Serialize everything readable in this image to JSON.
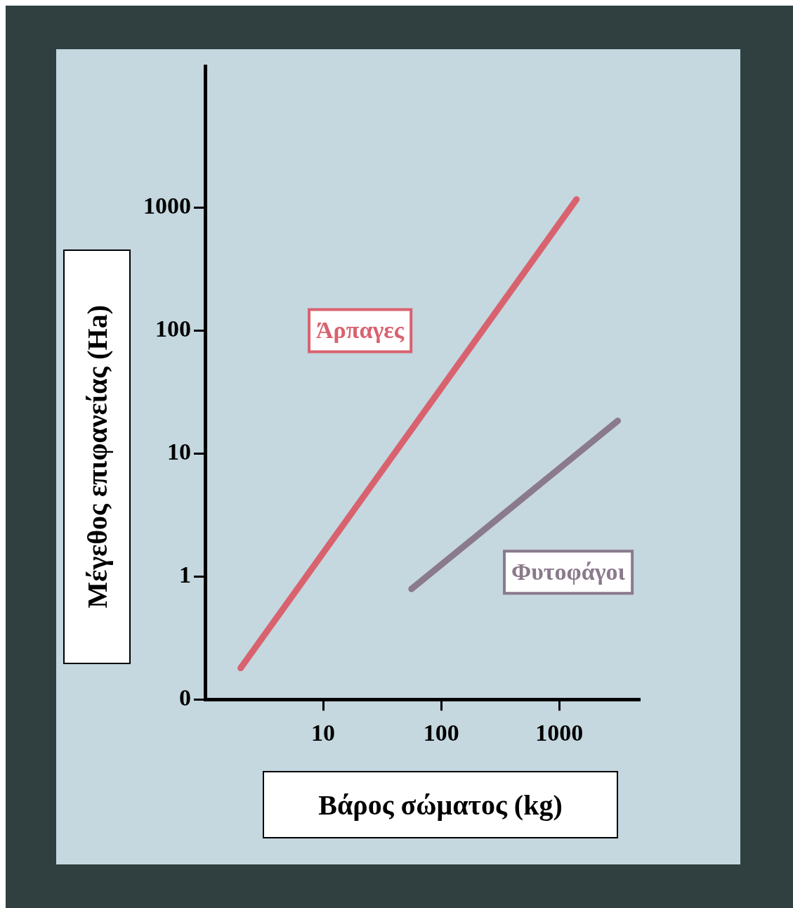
{
  "chart_data": {
    "type": "line",
    "xlabel": "Βάρος σώματος (kg)",
    "ylabel": "Μέγεθος επιφανείας (Ha)",
    "log": "xy",
    "grid": false,
    "legend": false,
    "xlim": [
      1,
      4750
    ],
    "xticks": [
      10,
      100,
      1000
    ],
    "ylim": [
      0.1,
      14000
    ],
    "yticks": [
      {
        "value": 0.1,
        "label": "0"
      },
      1,
      10,
      100,
      1000
    ],
    "series": [
      {
        "name": "Άρπαγες",
        "color": "#d9626f",
        "x": [
          2,
          1400
        ],
        "values": [
          0.18,
          1160
        ]
      },
      {
        "name": "Φυτοφάγοι",
        "color": "#8a7a8c",
        "x": [
          56,
          3130
        ],
        "values": [
          0.79,
          18.4
        ]
      }
    ]
  }
}
